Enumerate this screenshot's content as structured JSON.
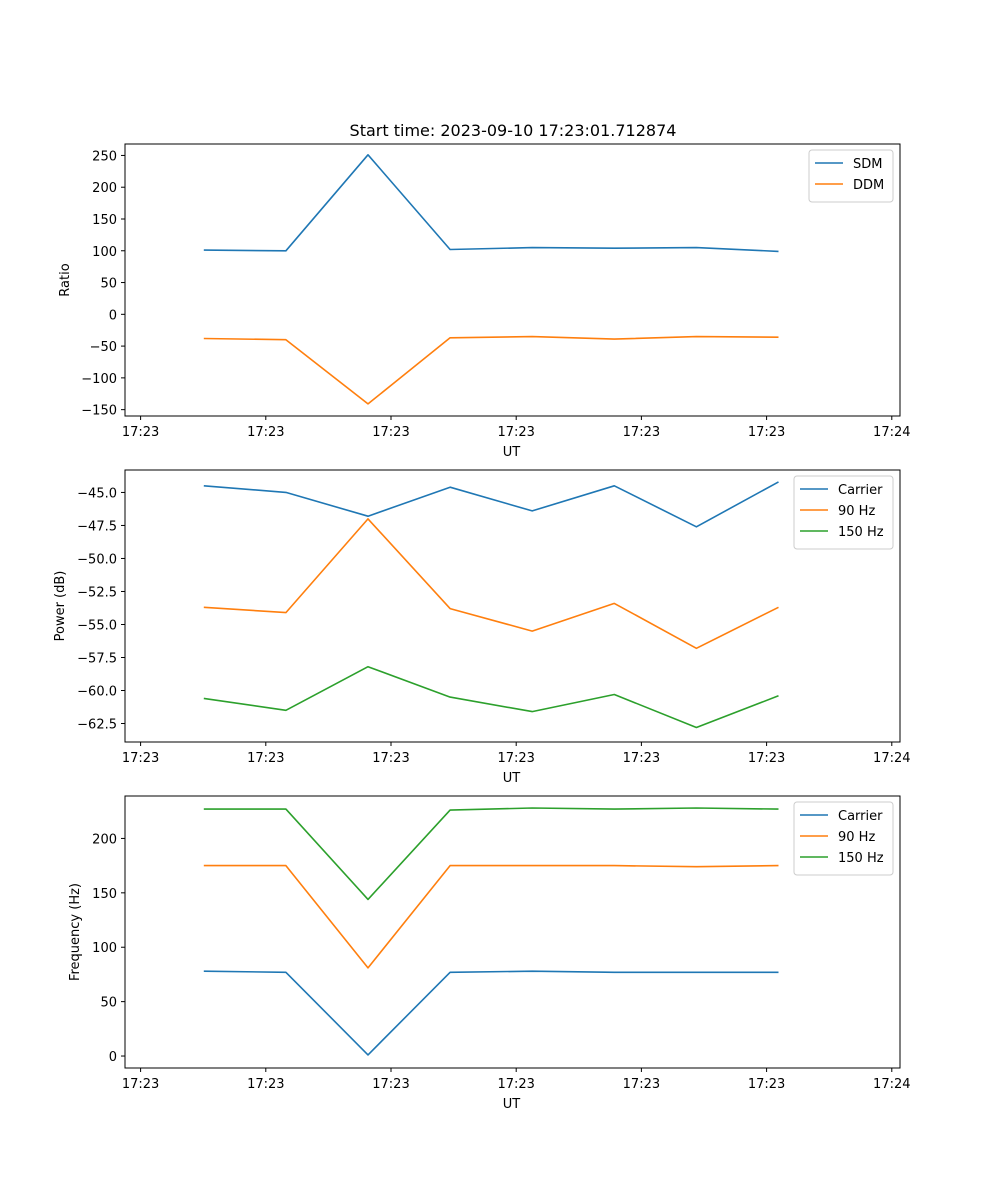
{
  "figure": {
    "title": "Start time: 2023-09-10 17:23:01.712874"
  },
  "chart_data": [
    {
      "type": "line",
      "title": "Start time: 2023-09-10 17:23:01.712874",
      "xlabel": "UT",
      "ylabel": "Ratio",
      "x_ticks": [
        "17:23",
        "17:23",
        "17:23",
        "17:23",
        "17:23",
        "17:23",
        "17:24"
      ],
      "xlim": [
        -0.19,
        9.25
      ],
      "ylim": [
        -160,
        268
      ],
      "y_ticks": [
        250,
        200,
        150,
        100,
        50,
        0,
        -50,
        -100,
        -150
      ],
      "y_tick_labels": [
        "250",
        "200",
        "150",
        "100",
        "50",
        "0",
        "−50",
        "−100",
        "−150"
      ],
      "legend": "top-right",
      "x": [
        0.77,
        1.77,
        2.77,
        3.77,
        4.77,
        5.77,
        6.77,
        7.77
      ],
      "series": [
        {
          "name": "SDM",
          "color": "#1f77b4",
          "values": [
            101,
            100,
            251,
            102,
            105,
            104,
            105,
            99
          ]
        },
        {
          "name": "DDM",
          "color": "#ff7f0e",
          "values": [
            -38,
            -40,
            -141,
            -37,
            -35,
            -39,
            -35,
            -36
          ]
        }
      ]
    },
    {
      "type": "line",
      "title": "",
      "xlabel": "UT",
      "ylabel": "Power (dB)",
      "x_ticks": [
        "17:23",
        "17:23",
        "17:23",
        "17:23",
        "17:23",
        "17:23",
        "17:24"
      ],
      "xlim": [
        -0.19,
        9.25
      ],
      "ylim": [
        -63.9,
        -43.3
      ],
      "y_ticks": [
        -45,
        -47.5,
        -50,
        -52.5,
        -55,
        -57.5,
        -60,
        -62.5
      ],
      "y_tick_labels": [
        "−45.0",
        "−47.5",
        "−50.0",
        "−52.5",
        "−55.0",
        "−57.5",
        "−60.0",
        "−62.5"
      ],
      "legend": "top-right",
      "x": [
        0.77,
        1.77,
        2.77,
        3.77,
        4.77,
        5.77,
        6.77,
        7.77
      ],
      "series": [
        {
          "name": "Carrier",
          "color": "#1f77b4",
          "values": [
            -44.5,
            -45.0,
            -46.8,
            -44.6,
            -46.4,
            -44.5,
            -47.6,
            -44.2
          ]
        },
        {
          "name": "90 Hz",
          "color": "#ff7f0e",
          "values": [
            -53.7,
            -54.1,
            -47.0,
            -53.8,
            -55.5,
            -53.4,
            -56.8,
            -53.7
          ]
        },
        {
          "name": "150 Hz",
          "color": "#2ca02c",
          "values": [
            -60.6,
            -61.5,
            -58.2,
            -60.5,
            -61.6,
            -60.3,
            -62.8,
            -60.4
          ]
        }
      ]
    },
    {
      "type": "line",
      "title": "",
      "xlabel": "UT",
      "ylabel": "Frequency (Hz)",
      "x_ticks": [
        "17:23",
        "17:23",
        "17:23",
        "17:23",
        "17:23",
        "17:23",
        "17:24"
      ],
      "xlim": [
        -0.19,
        9.25
      ],
      "ylim": [
        -11,
        239
      ],
      "y_ticks": [
        200,
        150,
        100,
        50,
        0
      ],
      "y_tick_labels": [
        "200",
        "150",
        "100",
        "50",
        "0"
      ],
      "legend": "top-right",
      "x": [
        0.77,
        1.77,
        2.77,
        3.77,
        4.77,
        5.77,
        6.77,
        7.77
      ],
      "series": [
        {
          "name": "Carrier",
          "color": "#1f77b4",
          "values": [
            78,
            77,
            1,
            77,
            78,
            77,
            77,
            77
          ]
        },
        {
          "name": "90 Hz",
          "color": "#ff7f0e",
          "values": [
            175,
            175,
            81,
            175,
            175,
            175,
            174,
            175
          ]
        },
        {
          "name": "150 Hz",
          "color": "#2ca02c",
          "values": [
            227,
            227,
            144,
            226,
            228,
            227,
            228,
            227
          ]
        }
      ]
    }
  ]
}
